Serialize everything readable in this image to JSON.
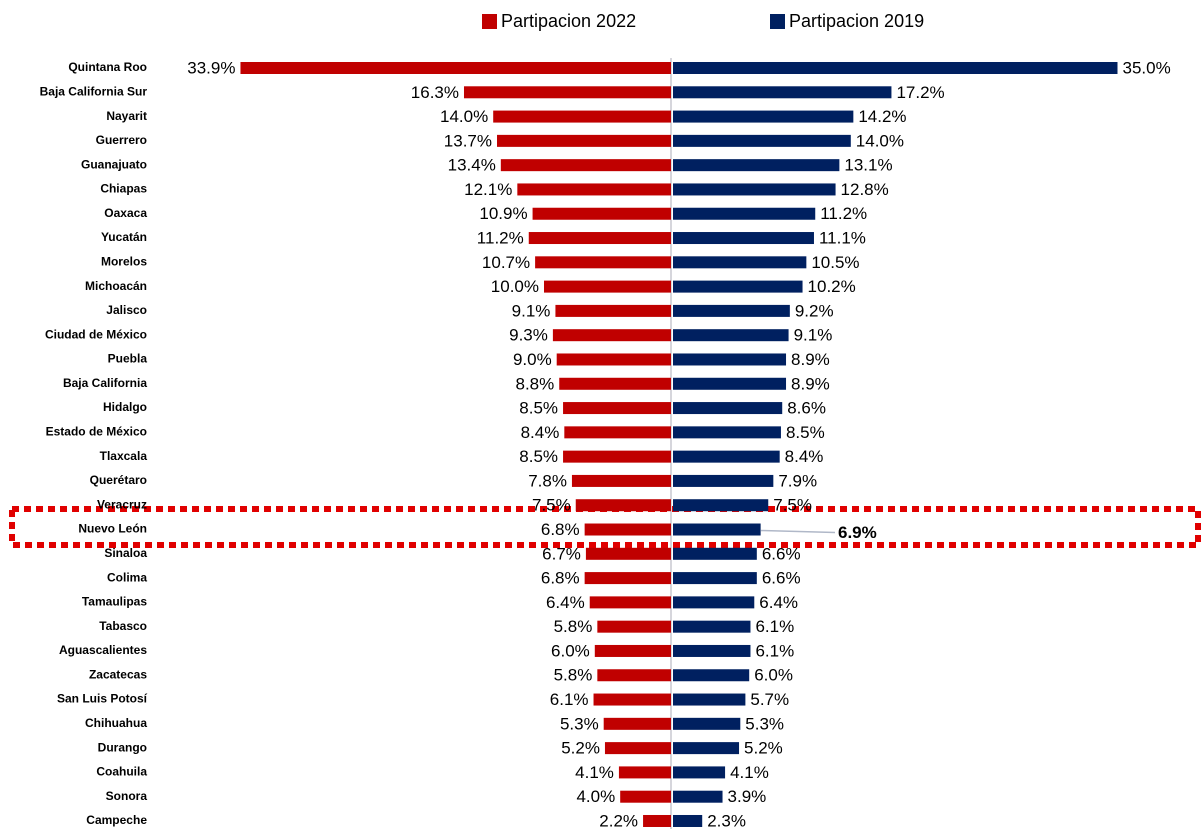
{
  "chart_data": {
    "type": "butterfly",
    "categories": [
      "Quintana Roo",
      "Baja California Sur",
      "Nayarit",
      "Guerrero",
      "Guanajuato",
      "Chiapas",
      "Oaxaca",
      "Yucatán",
      "Morelos",
      "Michoacán",
      "Jalisco",
      "Ciudad de México",
      "Puebla",
      "Baja California",
      "Hidalgo",
      "Estado de México",
      "Tlaxcala",
      "Querétaro",
      "Veracruz",
      "Nuevo León",
      "Sinaloa",
      "Colima",
      "Tamaulipas",
      "Tabasco",
      "Aguascalientes",
      "Zacatecas",
      "San Luis Potosí",
      "Chihuahua",
      "Durango",
      "Coahuila",
      "Sonora",
      "Campeche"
    ],
    "series": [
      {
        "name": "Partipacion 2022",
        "color": "#c00000",
        "values": [
          33.9,
          16.3,
          14.0,
          13.7,
          13.4,
          12.1,
          10.9,
          11.2,
          10.7,
          10.0,
          9.1,
          9.3,
          9.0,
          8.8,
          8.5,
          8.4,
          8.5,
          7.8,
          7.5,
          6.8,
          6.7,
          6.8,
          6.4,
          5.8,
          6.0,
          5.8,
          6.1,
          5.3,
          5.2,
          4.1,
          4.0,
          2.2
        ],
        "value_labels": [
          "33.9%",
          "16.3%",
          "14.0%",
          "13.7%",
          "13.4%",
          "12.1%",
          "10.9%",
          "11.2%",
          "10.7%",
          "10.0%",
          "9.1%",
          "9.3%",
          "9.0%",
          "8.8%",
          "8.5%",
          "8.4%",
          "8.5%",
          "7.8%",
          "7.5%",
          "6.8%",
          "6.7%",
          "6.8%",
          "6.4%",
          "5.8%",
          "6.0%",
          "5.8%",
          "6.1%",
          "5.3%",
          "5.2%",
          "4.1%",
          "4.0%",
          "2.2%"
        ]
      },
      {
        "name": "Partipacion 2019",
        "color": "#002060",
        "values": [
          35.0,
          17.2,
          14.2,
          14.0,
          13.1,
          12.8,
          11.2,
          11.1,
          10.5,
          10.2,
          9.2,
          9.1,
          8.9,
          8.9,
          8.6,
          8.5,
          8.4,
          7.9,
          7.5,
          6.9,
          6.6,
          6.6,
          6.4,
          6.1,
          6.1,
          6.0,
          5.7,
          5.3,
          5.2,
          4.1,
          3.9,
          2.3
        ],
        "value_labels": [
          "35.0%",
          "17.2%",
          "14.2%",
          "14.0%",
          "13.1%",
          "12.8%",
          "11.2%",
          "11.1%",
          "10.5%",
          "10.2%",
          "9.2%",
          "9.1%",
          "8.9%",
          "8.9%",
          "8.6%",
          "8.5%",
          "8.4%",
          "7.9%",
          "7.5%",
          "6.9%",
          "6.6%",
          "6.6%",
          "6.4%",
          "6.1%",
          "6.1%",
          "6.0%",
          "5.7%",
          "5.3%",
          "5.2%",
          "4.1%",
          "3.9%",
          "2.3%"
        ]
      }
    ]
  }
}
